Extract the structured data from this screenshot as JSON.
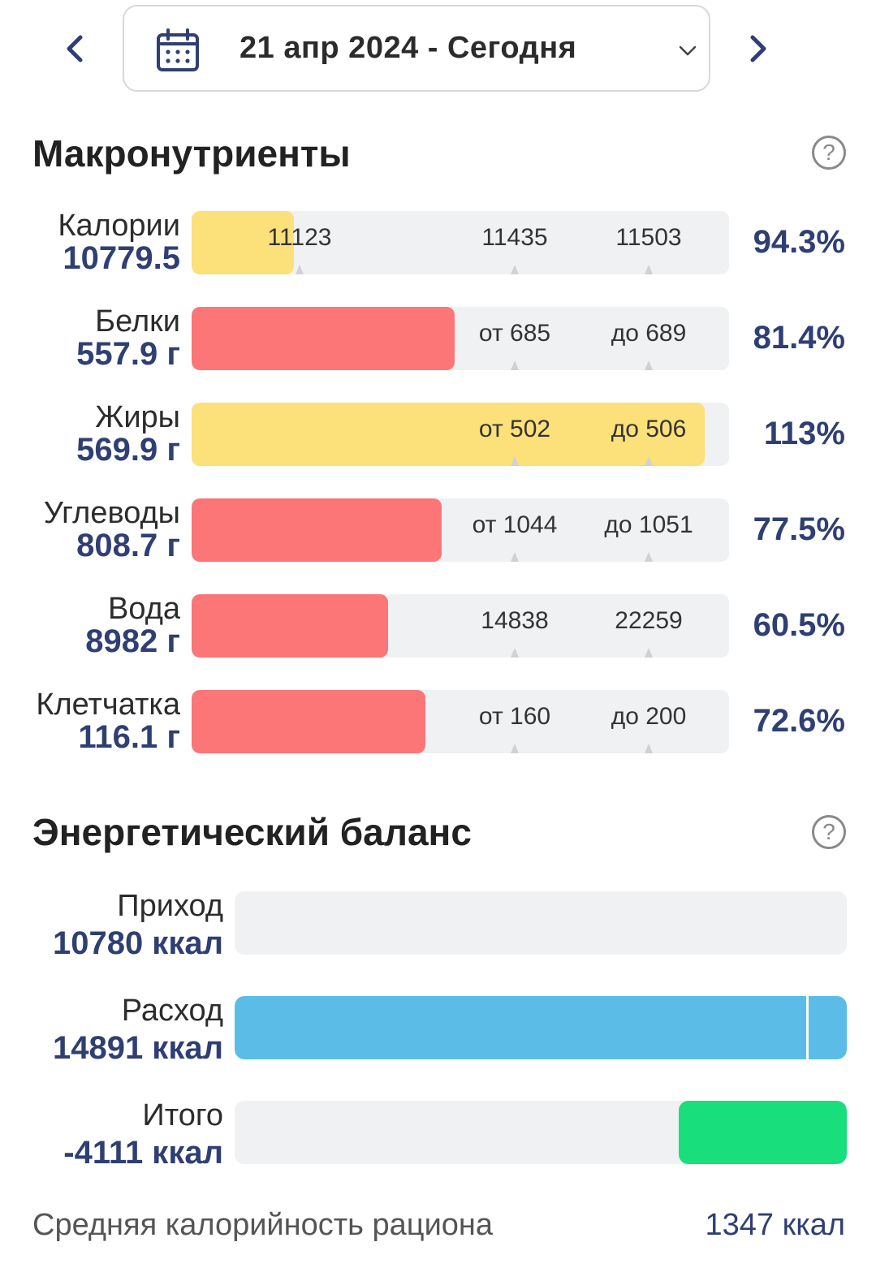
{
  "header": {
    "date_label": "21 апр 2024 - Сегодня",
    "icons": {
      "prev": "chevron-left-icon",
      "next": "chevron-right-icon",
      "calendar": "calendar-icon",
      "dropdown": "chevron-down-icon"
    }
  },
  "macros": {
    "title": "Макронутриенты",
    "help_glyph": "?",
    "rows": [
      {
        "name": "Калории",
        "value": "10779.5",
        "low_label": "11123",
        "high_label": "11435",
        "extra_label": "11503",
        "percent": "94.3%",
        "fill_fraction": 0.19,
        "fill_color": "#fce07a"
      },
      {
        "name": "Белки",
        "value": "557.9 г",
        "low_label": "от 685",
        "high_label": "до 689",
        "percent": "81.4%",
        "fill_fraction": 0.49,
        "fill_color": "#fc7577"
      },
      {
        "name": "Жиры",
        "value": "569.9 г",
        "low_label": "от 502",
        "high_label": "до 506",
        "percent": "113%",
        "fill_fraction": 0.955,
        "fill_color": "#fce07a"
      },
      {
        "name": "Углеводы",
        "value": "808.7 г",
        "low_label": "от 1044",
        "high_label": "до 1051",
        "percent": "77.5%",
        "fill_fraction": 0.465,
        "fill_color": "#fc7577"
      },
      {
        "name": "Вода",
        "value": "8982 г",
        "low_label": "14838",
        "high_label": "22259",
        "percent": "60.5%",
        "fill_fraction": 0.365,
        "fill_color": "#fc7577"
      },
      {
        "name": "Клетчатка",
        "value": "116.1 г",
        "low_label": "от 160",
        "high_label": "до 200",
        "percent": "72.6%",
        "fill_fraction": 0.435,
        "fill_color": "#fc7577"
      }
    ]
  },
  "energy": {
    "title": "Энергетический баланс",
    "help_glyph": "?",
    "rows": [
      {
        "name": "Приход",
        "value": "10780 ккал",
        "fill_start": 0,
        "fill_fraction": 0,
        "fill_color": "#f0f1f3"
      },
      {
        "name": "Расход",
        "value": "14891 ккал",
        "fill_start": 0,
        "fill_fraction": 1.0,
        "fill_color": "#5bbde7",
        "divider_fraction": 0.934
      },
      {
        "name": "Итого",
        "value": "-4111 ккал",
        "fill_start": 0.725,
        "fill_fraction": 0.275,
        "fill_color": "#18df7c"
      }
    ]
  },
  "footer": {
    "label": "Средняя калорийность рациона",
    "value": "1347 ккал"
  }
}
